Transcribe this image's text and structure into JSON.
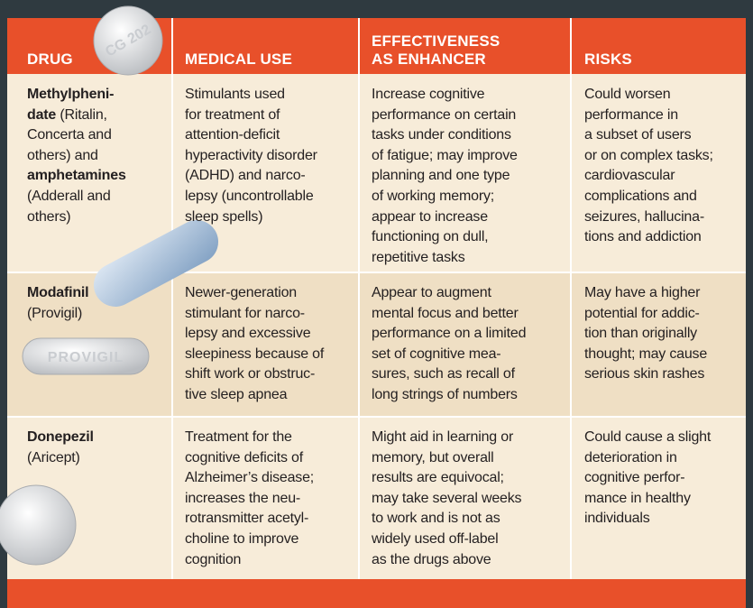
{
  "table": {
    "header": [
      [
        "DRUG"
      ],
      [
        "MEDICAL USE"
      ],
      [
        "EFFECTIVENESS",
        "AS ENHANCER"
      ],
      [
        "RISKS"
      ]
    ],
    "rows": [
      {
        "drug": [
          [
            {
              "text": "Methylpheni-",
              "bold": true
            }
          ],
          [
            {
              "text": "date",
              "bold": true
            },
            {
              "text": " (Ritalin,",
              "bold": false
            }
          ],
          [
            {
              "text": "Concerta and",
              "bold": false
            }
          ],
          [
            {
              "text": "others) and",
              "bold": false
            }
          ],
          [
            {
              "text": "amphetamines",
              "bold": true
            }
          ],
          [
            {
              "text": "(Adderall and",
              "bold": false
            }
          ],
          [
            {
              "text": "others)",
              "bold": false
            }
          ]
        ],
        "use": [
          "Stimulants used",
          "for treatment of",
          "attention-deficit",
          "hyperactivity disorder",
          "(ADHD) and narco-",
          "lepsy (uncontrollable",
          "sleep spells)"
        ],
        "effect": [
          "Increase cognitive",
          "performance on certain",
          "tasks under conditions",
          "of fatigue; may improve",
          "planning and one type",
          "of working memory;",
          "appear to increase",
          "functioning on dull,",
          "repetitive tasks"
        ],
        "risks": [
          "Could worsen",
          "performance in",
          "a subset of users",
          "or on complex tasks;",
          "cardiovascular",
          "complications and",
          "seizures, hallucina-",
          "tions and addiction"
        ]
      },
      {
        "drug": [
          [
            {
              "text": "Modafinil",
              "bold": true
            }
          ],
          [
            {
              "text": "(Provigil)",
              "bold": false
            }
          ]
        ],
        "use": [
          "Newer-generation",
          "stimulant for narco-",
          "lepsy and excessive",
          "sleepiness because of",
          "shift work or obstruc-",
          "tive sleep apnea"
        ],
        "effect": [
          "Appear to augment",
          "mental focus and better",
          "performance on a limited",
          "set of cognitive mea-",
          "sures, such as recall of",
          "long strings of numbers"
        ],
        "risks": [
          "May have a higher",
          "potential for addic-",
          "tion than originally",
          "thought; may cause",
          "serious skin rashes"
        ]
      },
      {
        "drug": [
          [
            {
              "text": "Donepezil",
              "bold": true
            }
          ],
          [
            {
              "text": "(Aricept)",
              "bold": false
            }
          ]
        ],
        "use": [
          "Treatment for the",
          "cognitive deficits of",
          "Alzheimer’s disease;",
          "increases the neu-",
          "rotransmitter acetyl-",
          "choline to improve",
          "cognition"
        ],
        "effect": [
          "Might aid in learning or",
          "memory, but overall",
          "results are equivocal;",
          "may take several weeks",
          "to work and is not as",
          "widely used off-label",
          "as the drugs above"
        ],
        "risks": [
          "Could cause a slight",
          "deterioration in",
          "cognitive perfor-",
          "mance in healthy",
          "individuals"
        ]
      }
    ],
    "pills": [
      "CG 202",
      "PROVIGIL"
    ]
  }
}
